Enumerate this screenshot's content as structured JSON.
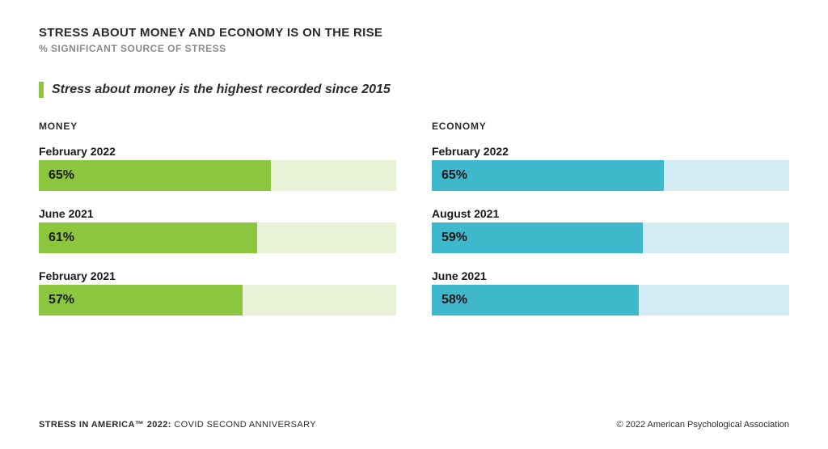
{
  "title": "STRESS ABOUT MONEY AND ECONOMY IS ON THE RISE",
  "subtitle": "% SIGNIFICANT SOURCE OF STRESS",
  "callout": {
    "text": "Stress about money is the highest recorded since 2015",
    "marker_color": "#8cc63f"
  },
  "colors": {
    "text_dark": "#2b2b2b",
    "text_muted": "#8a8a8a",
    "background": "#ffffff"
  },
  "charts": [
    {
      "title": "MONEY",
      "fill_color": "#8cc63f",
      "track_color": "#e9f1d6",
      "bars": [
        {
          "label": "February 2022",
          "value": 65,
          "value_label": "65%"
        },
        {
          "label": "June 2021",
          "value": 61,
          "value_label": "61%"
        },
        {
          "label": "February 2021",
          "value": 57,
          "value_label": "57%"
        }
      ]
    },
    {
      "title": "ECONOMY",
      "fill_color": "#3fb8cc",
      "track_color": "#d3ecf3",
      "bars": [
        {
          "label": "February 2022",
          "value": 65,
          "value_label": "65%"
        },
        {
          "label": "August 2021",
          "value": 59,
          "value_label": "59%"
        },
        {
          "label": "June 2021",
          "value": 58,
          "value_label": "58%"
        }
      ]
    }
  ],
  "footer": {
    "left_bold": "STRESS IN AMERICA™ 2022:",
    "left_thin": " COVID SECOND ANNIVERSARY",
    "right": "© 2022 American Psychological Association"
  }
}
